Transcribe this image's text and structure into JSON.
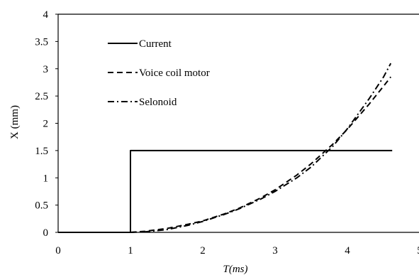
{
  "chart_data": {
    "type": "line",
    "xlabel": "T(ms)",
    "ylabel": "X (mm)",
    "xlim": [
      0,
      5
    ],
    "ylim": [
      0,
      4
    ],
    "x_ticks": [
      "0",
      "1",
      "2",
      "3",
      "4",
      "5"
    ],
    "y_ticks": [
      "0",
      "0.5",
      "1",
      "1.5",
      "2",
      "2.5",
      "3",
      "3.5",
      "4"
    ],
    "grid": false,
    "legend_position": "upper-left",
    "series": [
      {
        "name": "Current",
        "style": "solid",
        "color": "#000000",
        "x": [
          0,
          1,
          1,
          4.62
        ],
        "y": [
          0,
          0,
          1.5,
          1.5
        ]
      },
      {
        "name": "Voice coil motor",
        "style": "dashed",
        "color": "#000000",
        "x": [
          1.0,
          1.2,
          1.5,
          1.8,
          2.0,
          2.3,
          2.5,
          2.8,
          3.0,
          3.3,
          3.5,
          3.8,
          4.0,
          4.3,
          4.5,
          4.6
        ],
        "y": [
          0.0,
          0.02,
          0.07,
          0.15,
          0.21,
          0.34,
          0.44,
          0.63,
          0.78,
          1.05,
          1.26,
          1.62,
          1.89,
          2.35,
          2.68,
          2.85
        ]
      },
      {
        "name": "Selonoid",
        "style": "dashdot",
        "color": "#000000",
        "x": [
          1.0,
          1.2,
          1.5,
          1.8,
          2.0,
          2.3,
          2.5,
          2.8,
          3.0,
          3.3,
          3.5,
          3.8,
          4.0,
          4.3,
          4.5,
          4.6
        ],
        "y": [
          0.0,
          0.01,
          0.05,
          0.13,
          0.2,
          0.33,
          0.43,
          0.61,
          0.75,
          1.0,
          1.2,
          1.58,
          1.9,
          2.45,
          2.85,
          3.1
        ]
      }
    ]
  }
}
